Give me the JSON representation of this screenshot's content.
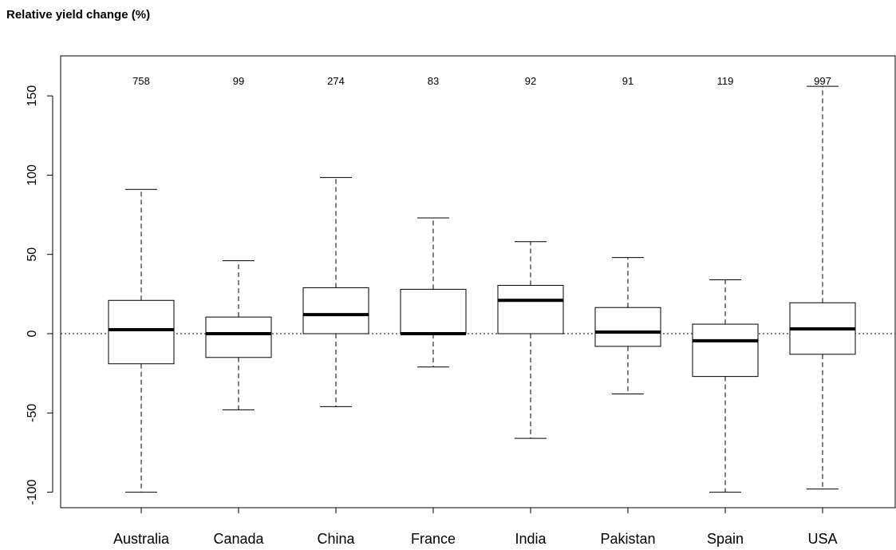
{
  "chart_data": {
    "type": "boxplot",
    "title": "Relative yield change (%)",
    "xlabel": "",
    "ylabel": "",
    "ylim": [
      -110,
      175
    ],
    "yticks": [
      -100,
      -50,
      0,
      50,
      100,
      150
    ],
    "reference_line": 0,
    "categories": [
      "Australia",
      "Canada",
      "China",
      "France",
      "India",
      "Pakistan",
      "Spain",
      "USA"
    ],
    "n_labels": [
      "758",
      "99",
      "274",
      "83",
      "92",
      "91",
      "119",
      "997"
    ],
    "boxes": [
      {
        "whisker_low": -100,
        "q1": -19,
        "median": 2.5,
        "q3": 21,
        "whisker_high": 91
      },
      {
        "whisker_low": -48,
        "q1": -15,
        "median": 0,
        "q3": 10.5,
        "whisker_high": 46
      },
      {
        "whisker_low": -46,
        "q1": 0,
        "median": 12,
        "q3": 29,
        "whisker_high": 98.5
      },
      {
        "whisker_low": -21,
        "q1": 0,
        "median": 0,
        "q3": 28,
        "whisker_high": 73
      },
      {
        "whisker_low": -66,
        "q1": 0,
        "median": 21,
        "q3": 30.5,
        "whisker_high": 58
      },
      {
        "whisker_low": -38,
        "q1": -8,
        "median": 1,
        "q3": 16.5,
        "whisker_high": 48
      },
      {
        "whisker_low": -100,
        "q1": -27,
        "median": -4.5,
        "q3": 6,
        "whisker_high": 34
      },
      {
        "whisker_low": -98,
        "q1": -13,
        "median": 3,
        "q3": 19.5,
        "whisker_high": 156
      }
    ]
  }
}
